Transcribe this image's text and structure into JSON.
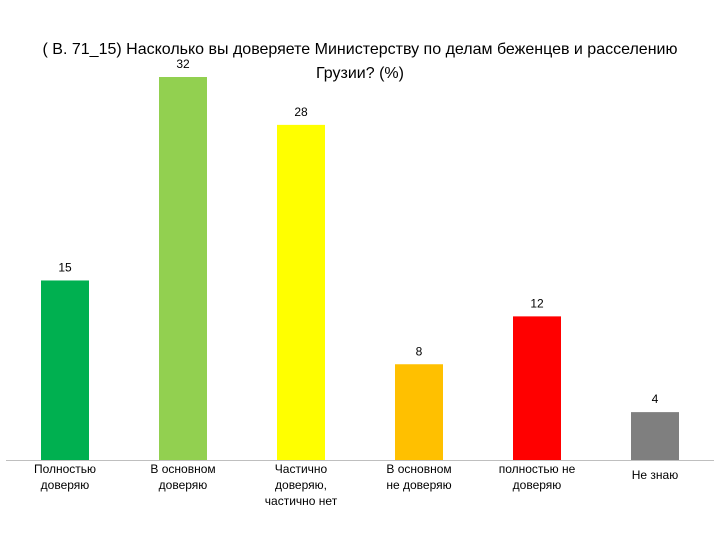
{
  "chart_data": {
    "type": "bar",
    "title": "( B. 71_15)  Насколько вы доверяете Министерству по делам беженцев и расселению Грузии? (%)",
    "xlabel": "",
    "ylabel": "",
    "ylim": [
      0,
      32
    ],
    "grid": false,
    "legend": "none",
    "categories": [
      [
        "Полностью",
        "доверяю"
      ],
      [
        "В основном",
        "доверяю"
      ],
      [
        "Частично",
        "доверяю,",
        "частично нет"
      ],
      [
        "В основном",
        "не доверяю"
      ],
      [
        "полностью не",
        "доверяю"
      ],
      [
        "Не знаю"
      ]
    ],
    "values": [
      15,
      32,
      28,
      8,
      12,
      4
    ],
    "colors": [
      "#00b050",
      "#92d050",
      "#ffff00",
      "#ffc000",
      "#ff0000",
      "#7f7f7f"
    ]
  }
}
